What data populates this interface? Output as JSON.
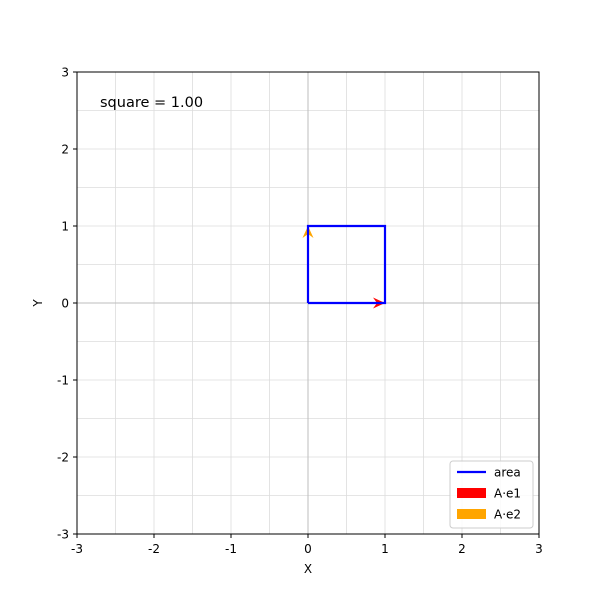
{
  "chart_data": {
    "type": "line",
    "title": "",
    "xlabel": "X",
    "ylabel": "Y",
    "xlim": [
      -3,
      3
    ],
    "ylim": [
      -3,
      3
    ],
    "xticks": [
      -3,
      -2,
      -1,
      0,
      1,
      2,
      3
    ],
    "yticks": [
      -3,
      -2,
      -1,
      0,
      1,
      2,
      3
    ],
    "xtick_labels": [
      "-3",
      "-2",
      "-1",
      "0",
      "1",
      "2",
      "3"
    ],
    "ytick_labels": [
      "-3",
      "-2",
      "-1",
      "0",
      "1",
      "2",
      "3"
    ],
    "grid": true,
    "minor_grid_step": 0.5,
    "annotation": "square = 1.00",
    "legend_position": "lower right",
    "series": [
      {
        "name": "area",
        "kind": "polygon",
        "color": "#0000ff",
        "points": [
          [
            0,
            0
          ],
          [
            1,
            0
          ],
          [
            1,
            1
          ],
          [
            0,
            1
          ],
          [
            0,
            0
          ]
        ]
      },
      {
        "name": "A·e1",
        "kind": "arrow",
        "color": "#ff0000",
        "from": [
          0,
          0
        ],
        "to": [
          1,
          0
        ]
      },
      {
        "name": "A·e2",
        "kind": "arrow",
        "color": "#ffa500",
        "from": [
          0,
          0
        ],
        "to": [
          0,
          1
        ]
      }
    ]
  }
}
